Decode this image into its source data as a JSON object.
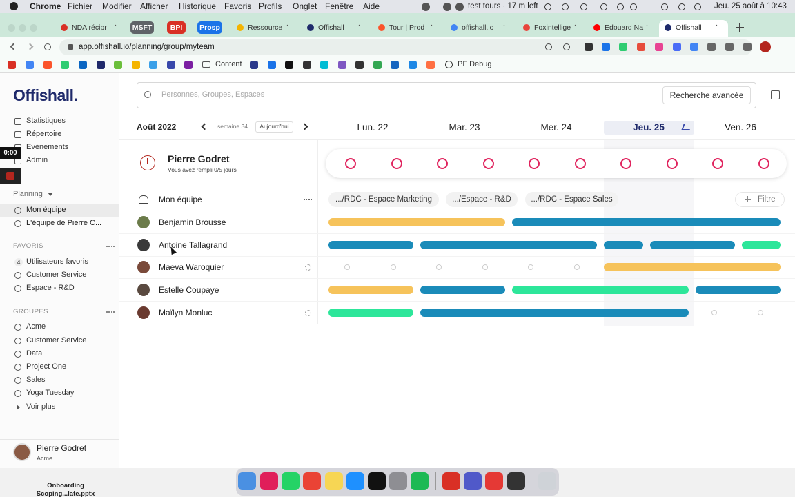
{
  "menu_bar": {
    "app": "Chrome",
    "items": [
      "Fichier",
      "Modifier",
      "Afficher",
      "Historique",
      "Favoris",
      "Profils",
      "Onglet",
      "Fenêtre",
      "Aide"
    ],
    "status": "test tours · 17 m left",
    "clock": "Jeu. 25 août à 10:43"
  },
  "tabs": [
    "NDA récipr",
    "MSFT",
    "BPI",
    "Prosp",
    "Ressource",
    "Offishall",
    "Tour | Prod",
    "offishall.io",
    "Foxintellige",
    "Edouard Na",
    "Offishall"
  ],
  "address": "app.offishall.io/planning/group/myteam",
  "bookmarks": [
    "Content",
    "PF Debug"
  ],
  "recording_timer": "0:00",
  "sidebar": {
    "logo": "Offishall.",
    "nav": [
      "Statistiques",
      "Répertoire",
      "Evénements",
      "Admin"
    ],
    "planning_label": "Planning",
    "planning": [
      "Mon équipe",
      "L'équipe de Pierre C..."
    ],
    "favorites_label": "FAVORIS",
    "favorites_count": "4",
    "favorites": [
      "Utilisateurs favoris",
      "Customer Service",
      "Espace - R&D"
    ],
    "groups_label": "GROUPES",
    "groups": [
      "Acme",
      "Customer Service",
      "Data",
      "Project One",
      "Sales",
      "Yoga Tuesday"
    ],
    "more": "Voir plus",
    "user": {
      "name": "Pierre Godret",
      "org": "Acme"
    }
  },
  "search": {
    "placeholder": "Personnes, Groupes, Espaces",
    "advanced": "Recherche avancée"
  },
  "calendar": {
    "month": "Août 2022",
    "week": "semaine 34",
    "today": "Aujourd'hui",
    "days": [
      "Lun. 22",
      "Mar. 23",
      "Mer. 24",
      "Jeu. 25",
      "Ven. 26"
    ]
  },
  "me": {
    "name": "Pierre Godret",
    "status": "Vous avez rempli 0/5 jours"
  },
  "team": {
    "title": "Mon équipe",
    "spaces": [
      ".../RDC - Espace Marketing",
      ".../Espace - R&D",
      ".../RDC - Espace Sales"
    ],
    "filter": "Filtre",
    "members": [
      "Benjamin Brousse",
      "Antoine Tallagrand",
      "Maeva Waroquier",
      "Estelle Coupaye",
      "Maïlyn Monluc"
    ]
  },
  "dock_file": [
    "Onboarding",
    "Scoping...late.pptx"
  ]
}
